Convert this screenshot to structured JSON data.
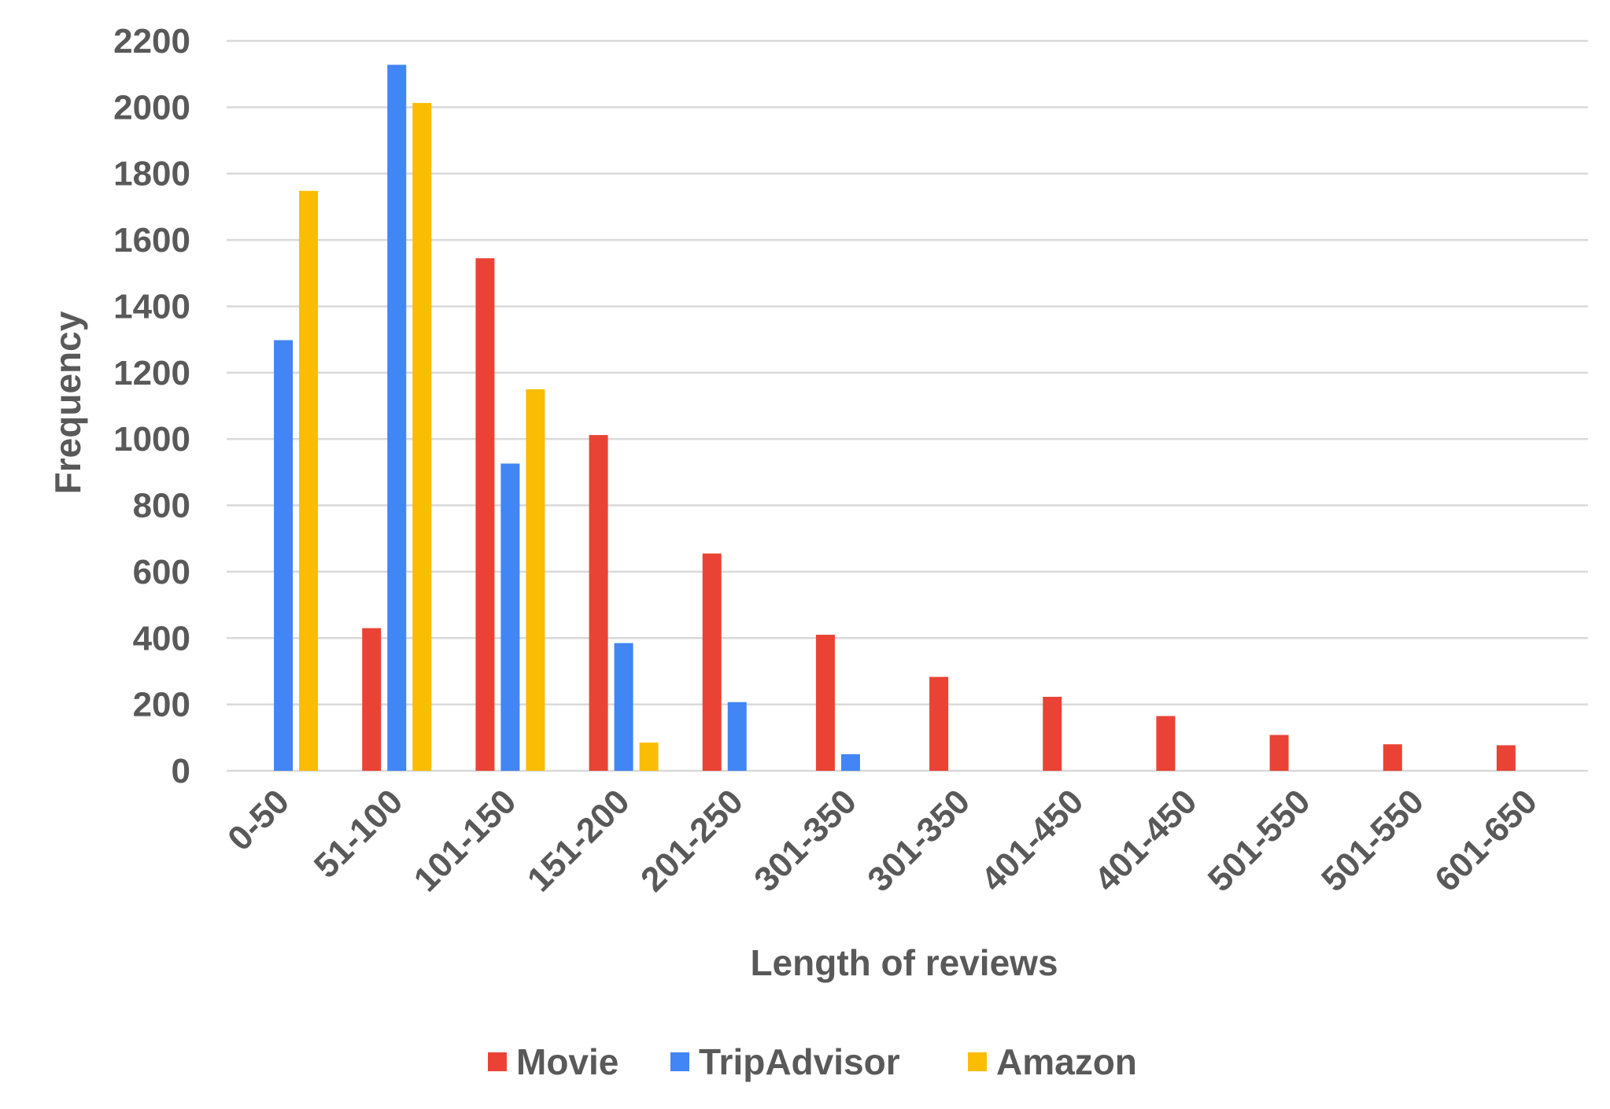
{
  "chart_data": {
    "type": "bar",
    "title": "",
    "xlabel": "Length of reviews",
    "ylabel": "Frequency",
    "ylim": [
      0,
      2200
    ],
    "yticks": [
      0,
      200,
      400,
      600,
      800,
      1000,
      1200,
      1400,
      1600,
      1800,
      2000,
      2200
    ],
    "grid": true,
    "legend_position": "bottom",
    "categories": [
      "0-50",
      "51-100",
      "101-150",
      "151-200",
      "201-250",
      "301-350",
      "301-350",
      "401-450",
      "401-450",
      "501-550",
      "501-550",
      "601-650"
    ],
    "series": [
      {
        "name": "Movie",
        "color": "#ea4335",
        "values": [
          0,
          430,
          1545,
          1012,
          655,
          410,
          283,
          223,
          165,
          108,
          80,
          77
        ]
      },
      {
        "name": "TripAdvisor",
        "color": "#4285f4",
        "values": [
          1298,
          2128,
          926,
          385,
          207,
          50,
          0,
          0,
          0,
          0,
          0,
          0
        ]
      },
      {
        "name": "Amazon",
        "color": "#fbbc04",
        "values": [
          1748,
          2013,
          1150,
          85,
          0,
          0,
          0,
          0,
          0,
          0,
          0,
          0
        ]
      }
    ]
  }
}
